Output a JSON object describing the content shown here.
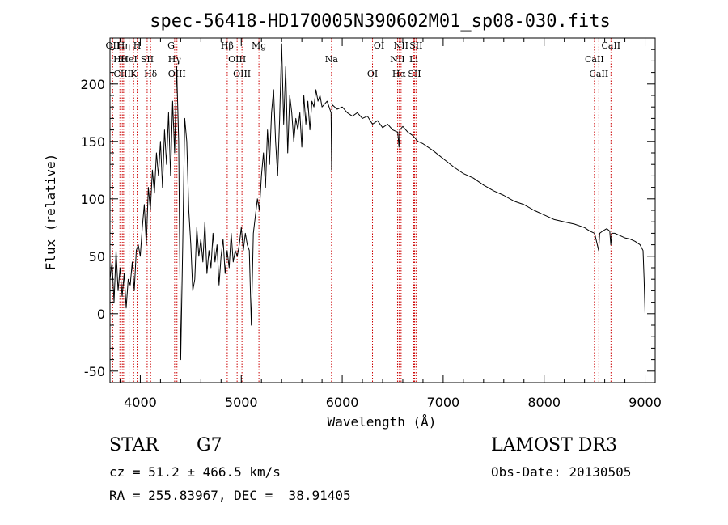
{
  "chart_data": {
    "type": "line",
    "title": "spec-56418-HD170005N390602M01_sp08-030.fits",
    "xlabel": "Wavelength (Å)",
    "ylabel": "Flux (relative)",
    "xlim": [
      3700,
      9100
    ],
    "ylim": [
      -60,
      240
    ],
    "xticks": [
      4000,
      5000,
      6000,
      7000,
      8000,
      9000
    ],
    "yticks": [
      -50,
      0,
      50,
      100,
      150,
      200
    ],
    "grid": false,
    "series": [
      {
        "x": [
          3700,
          3720,
          3740,
          3760,
          3780,
          3800,
          3820,
          3840,
          3860,
          3880,
          3900,
          3920,
          3940,
          3960,
          3980,
          4000,
          4020,
          4040,
          4060,
          4080,
          4100,
          4120,
          4140,
          4160,
          4180,
          4200,
          4220,
          4240,
          4260,
          4280,
          4300,
          4320,
          4340,
          4360,
          4380,
          4400,
          4420,
          4440,
          4460,
          4480,
          4500,
          4520,
          4540,
          4560,
          4580,
          4600,
          4620,
          4640,
          4660,
          4680,
          4700,
          4720,
          4740,
          4760,
          4780,
          4800,
          4820,
          4840,
          4860,
          4880,
          4900,
          4920,
          4940,
          4960,
          4980,
          5000,
          5020,
          5040,
          5060,
          5080,
          5100,
          5120,
          5140,
          5160,
          5180,
          5200,
          5220,
          5240,
          5260,
          5280,
          5300,
          5320,
          5340,
          5360,
          5380,
          5400,
          5420,
          5440,
          5460,
          5480,
          5500,
          5520,
          5540,
          5560,
          5580,
          5600,
          5620,
          5640,
          5660,
          5680,
          5700,
          5720,
          5740,
          5760,
          5780,
          5800,
          5850,
          5890,
          5895,
          5900,
          5950,
          6000,
          6050,
          6100,
          6150,
          6200,
          6250,
          6300,
          6350,
          6400,
          6450,
          6500,
          6550,
          6563,
          6570,
          6600,
          6650,
          6700,
          6750,
          6800,
          6900,
          7000,
          7100,
          7200,
          7300,
          7400,
          7500,
          7600,
          7700,
          7800,
          7900,
          8000,
          8100,
          8200,
          8300,
          8400,
          8450,
          8500,
          8540,
          8550,
          8580,
          8620,
          8650,
          8660,
          8670,
          8700,
          8750,
          8800,
          8850,
          8900,
          8950,
          8980,
          8990,
          9000
        ],
        "y": [
          30,
          45,
          10,
          55,
          20,
          40,
          15,
          35,
          5,
          30,
          25,
          45,
          20,
          55,
          60,
          50,
          75,
          95,
          60,
          110,
          90,
          125,
          105,
          140,
          120,
          150,
          110,
          160,
          130,
          175,
          120,
          185,
          140,
          215,
          150,
          -40,
          60,
          170,
          150,
          90,
          60,
          20,
          30,
          75,
          50,
          65,
          45,
          80,
          35,
          55,
          40,
          70,
          45,
          60,
          25,
          50,
          65,
          35,
          55,
          40,
          70,
          45,
          55,
          50,
          60,
          75,
          55,
          70,
          60,
          55,
          -10,
          70,
          85,
          100,
          90,
          120,
          140,
          110,
          160,
          130,
          175,
          195,
          150,
          120,
          170,
          235,
          165,
          215,
          140,
          190,
          175,
          150,
          170,
          160,
          175,
          145,
          190,
          165,
          185,
          160,
          185,
          180,
          195,
          185,
          190,
          180,
          185,
          175,
          125,
          182,
          178,
          180,
          175,
          172,
          175,
          170,
          172,
          165,
          168,
          162,
          165,
          160,
          158,
          145,
          160,
          163,
          158,
          155,
          150,
          148,
          142,
          135,
          128,
          122,
          118,
          112,
          107,
          103,
          98,
          95,
          90,
          86,
          82,
          80,
          78,
          75,
          72,
          70,
          55,
          70,
          72,
          74,
          72,
          60,
          70,
          70,
          68,
          66,
          65,
          63,
          60,
          55,
          30,
          0
        ]
      }
    ],
    "lines": [
      {
        "label": "OII",
        "x": 3727
      },
      {
        "label": "Hθ",
        "x": 3798
      },
      {
        "label": "CIII",
        "x": 3822
      },
      {
        "label": "Hη",
        "x": 3835
      },
      {
        "label": "HeI",
        "x": 3889
      },
      {
        "label": "K",
        "x": 3934
      },
      {
        "label": "H",
        "x": 3969
      },
      {
        "label": "SII",
        "x": 4068
      },
      {
        "label": "Hδ",
        "x": 4102
      },
      {
        "label": "G",
        "x": 4305
      },
      {
        "label": "Hγ",
        "x": 4340
      },
      {
        "label": "OIII",
        "x": 4363
      },
      {
        "label": "Hβ",
        "x": 4861
      },
      {
        "label": "OIII",
        "x": 4959
      },
      {
        "label": "OIII",
        "x": 5007
      },
      {
        "label": "Mg",
        "x": 5175
      },
      {
        "label": "Na",
        "x": 5894
      },
      {
        "label": "OI",
        "x": 6300
      },
      {
        "label": "OI",
        "x": 6364
      },
      {
        "label": "NII",
        "x": 6548
      },
      {
        "label": "Hα",
        "x": 6563
      },
      {
        "label": "NII",
        "x": 6583
      },
      {
        "label": "Li",
        "x": 6708
      },
      {
        "label": "SII",
        "x": 6716
      },
      {
        "label": "SII",
        "x": 6731
      },
      {
        "label": "CaII",
        "x": 8498
      },
      {
        "label": "CaII",
        "x": 8542
      },
      {
        "label": "CaII",
        "x": 8662
      }
    ]
  },
  "info": {
    "class": "STAR",
    "subclass": "G7",
    "survey": "LAMOST DR3",
    "cz": "cz = 51.2 ± 466.5 km/s",
    "obs_date": "Obs-Date: 20130505",
    "radec": "RA = 255.83967, DEC =  38.91405"
  },
  "colors": {
    "spectrum": "#000000",
    "line_marker": "#cc0000"
  }
}
